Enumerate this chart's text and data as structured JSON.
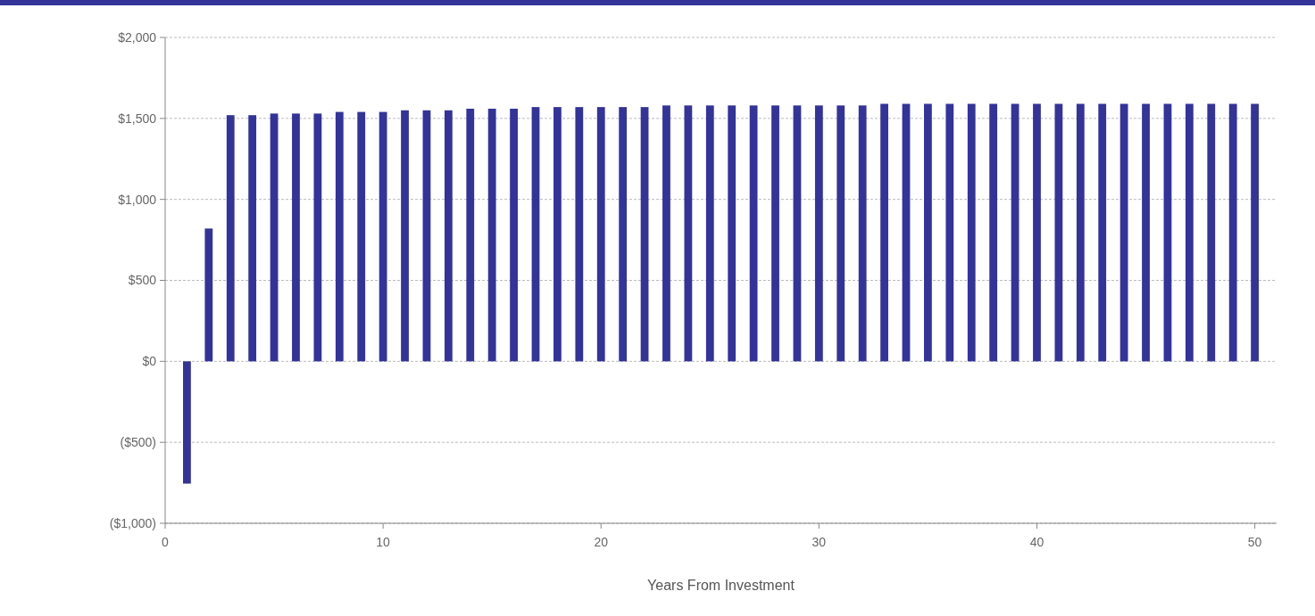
{
  "chart_data": {
    "type": "bar",
    "xlabel": "Years From Investment",
    "x": [
      1,
      2,
      3,
      4,
      5,
      6,
      7,
      8,
      9,
      10,
      11,
      12,
      13,
      14,
      15,
      16,
      17,
      18,
      19,
      20,
      21,
      22,
      23,
      24,
      25,
      26,
      27,
      28,
      29,
      30,
      31,
      32,
      33,
      34,
      35,
      36,
      37,
      38,
      39,
      40,
      41,
      42,
      43,
      44,
      45,
      46,
      47,
      48,
      49,
      50
    ],
    "values": [
      -755,
      820,
      1520,
      1520,
      1530,
      1530,
      1530,
      1540,
      1540,
      1540,
      1550,
      1550,
      1550,
      1560,
      1560,
      1560,
      1570,
      1570,
      1570,
      1570,
      1570,
      1570,
      1580,
      1580,
      1580,
      1580,
      1580,
      1580,
      1580,
      1580,
      1580,
      1580,
      1590,
      1590,
      1590,
      1590,
      1590,
      1590,
      1590,
      1590,
      1590,
      1590,
      1590,
      1590,
      1590,
      1590,
      1590,
      1590,
      1590,
      1590
    ],
    "color": "#333399",
    "xlim": [
      0,
      51
    ],
    "xticks": [
      0,
      10,
      20,
      30,
      40,
      50
    ],
    "ylim": [
      -1000,
      2000
    ],
    "yticks": [
      {
        "value": -1000,
        "label": "($1,000)"
      },
      {
        "value": -500,
        "label": "($500)"
      },
      {
        "value": 0,
        "label": "$0"
      },
      {
        "value": 500,
        "label": "$500"
      },
      {
        "value": 1000,
        "label": "$1,000"
      },
      {
        "value": 1500,
        "label": "$1,500"
      },
      {
        "value": 2000,
        "label": "$2,000"
      }
    ],
    "grid": "y"
  }
}
